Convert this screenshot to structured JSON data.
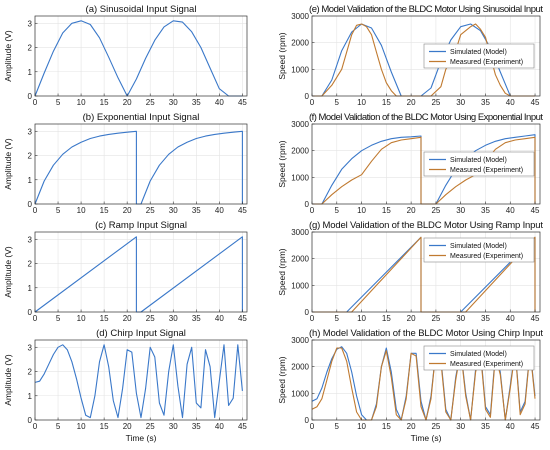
{
  "colors": {
    "model": "#3a78c9",
    "experiment": "#c07a30",
    "grid": "#e4e4e4",
    "axis": "#333333"
  },
  "chart_data": [
    {
      "type": "line",
      "title": "(a) Sinusoidal Input Signal",
      "xlabel": "",
      "ylabel": "Amplitude (V)",
      "xlim": [
        0,
        46
      ],
      "ylim": [
        0,
        3.3
      ],
      "xticks": [
        0,
        5,
        10,
        15,
        20,
        25,
        30,
        35,
        40,
        45
      ],
      "yticks": [
        0,
        1,
        2,
        3
      ],
      "grid": true,
      "series": [
        {
          "color": "model",
          "x": [
            0,
            2,
            4,
            6,
            8,
            10,
            12,
            14,
            16,
            18,
            20,
            22,
            24,
            26,
            28,
            30,
            32,
            34,
            36,
            38,
            40,
            42,
            44,
            45
          ],
          "y": [
            0,
            0.95,
            1.85,
            2.6,
            3.0,
            3.1,
            2.95,
            2.4,
            1.6,
            0.75,
            0,
            0.7,
            1.55,
            2.3,
            2.85,
            3.1,
            3.05,
            2.65,
            2.0,
            1.15,
            0.3,
            0,
            0,
            0
          ]
        }
      ]
    },
    {
      "type": "line",
      "title": "(b) Exponential Input Signal",
      "xlabel": "",
      "ylabel": "Amplitude (V)",
      "xlim": [
        0,
        46
      ],
      "ylim": [
        0,
        3.3
      ],
      "xticks": [
        0,
        5,
        10,
        15,
        20,
        25,
        30,
        35,
        40,
        45
      ],
      "yticks": [
        0,
        1,
        2,
        3
      ],
      "grid": true,
      "series": [
        {
          "color": "model",
          "x": [
            0,
            2,
            4,
            6,
            8,
            10,
            12,
            14,
            16,
            18,
            20,
            22,
            22,
            23,
            25,
            27,
            29,
            31,
            33,
            35,
            37,
            39,
            41,
            43,
            45,
            45
          ],
          "y": [
            0,
            0.95,
            1.6,
            2.05,
            2.35,
            2.55,
            2.7,
            2.8,
            2.87,
            2.92,
            2.96,
            3.0,
            0,
            0,
            0.95,
            1.6,
            2.05,
            2.35,
            2.55,
            2.7,
            2.8,
            2.87,
            2.92,
            2.96,
            3.0,
            0
          ]
        }
      ]
    },
    {
      "type": "line",
      "title": "(c) Ramp Input Signal",
      "xlabel": "",
      "ylabel": "Amplitude (V)",
      "xlim": [
        0,
        46
      ],
      "ylim": [
        0,
        3.3
      ],
      "xticks": [
        0,
        5,
        10,
        15,
        20,
        25,
        30,
        35,
        40,
        45
      ],
      "yticks": [
        0,
        1,
        2,
        3
      ],
      "grid": true,
      "series": [
        {
          "color": "model",
          "x": [
            0,
            22,
            22,
            23,
            45,
            45
          ],
          "y": [
            0,
            3.1,
            0,
            0,
            3.1,
            0
          ]
        }
      ]
    },
    {
      "type": "line",
      "title": "(d) Chirp Input Signal",
      "xlabel": "Time (s)",
      "ylabel": "Amplitude (V)",
      "xlim": [
        0,
        46
      ],
      "ylim": [
        0,
        3.3
      ],
      "xticks": [
        0,
        5,
        10,
        15,
        20,
        25,
        30,
        35,
        40,
        45
      ],
      "yticks": [
        0,
        1,
        2,
        3
      ],
      "grid": true,
      "series": [
        {
          "color": "model",
          "x": [
            0,
            1,
            2,
            3,
            4,
            5,
            6,
            7,
            8,
            9,
            10,
            11,
            12,
            13,
            14,
            15,
            16,
            17,
            18,
            19,
            20,
            21,
            22,
            23,
            24,
            25,
            26,
            27,
            28,
            29,
            30,
            31,
            32,
            33,
            34,
            35,
            36,
            37,
            38,
            39,
            40,
            41,
            42,
            43,
            44,
            45
          ],
          "y": [
            1.55,
            1.6,
            1.9,
            2.3,
            2.7,
            3.0,
            3.1,
            2.9,
            2.4,
            1.7,
            0.9,
            0.2,
            0.1,
            1.0,
            2.4,
            3.1,
            2.2,
            0.8,
            0.1,
            1.3,
            2.9,
            2.8,
            1.1,
            0.1,
            1.3,
            3.0,
            2.6,
            0.7,
            0.2,
            2.0,
            3.1,
            1.4,
            0.1,
            2.3,
            3.0,
            0.7,
            0.5,
            2.9,
            2.2,
            0.1,
            1.6,
            3.1,
            0.6,
            0.9,
            3.1,
            1.2
          ]
        }
      ]
    },
    {
      "type": "line",
      "title": "(e) Model Validation of the BLDC Motor Using Sinusoidal Input",
      "xlabel": "",
      "ylabel": "Speed (rpm)",
      "xlim": [
        0,
        46
      ],
      "ylim": [
        0,
        3000
      ],
      "xticks": [
        0,
        5,
        10,
        15,
        20,
        25,
        30,
        35,
        40,
        45
      ],
      "yticks": [
        0,
        1000,
        2000,
        3000
      ],
      "grid": true,
      "legend": [
        "Simulated (Model)",
        "Measured (Experiment)"
      ],
      "legend_position": "right",
      "series": [
        {
          "name": "Simulated (Model)",
          "color": "model",
          "x": [
            0,
            2,
            4,
            6,
            8,
            10,
            12,
            14,
            16,
            18,
            20,
            22,
            24,
            26,
            28,
            30,
            32,
            34,
            36,
            38,
            40,
            42,
            44,
            45
          ],
          "y": [
            0,
            0,
            600,
            1700,
            2400,
            2700,
            2550,
            1900,
            900,
            0,
            0,
            0,
            300,
            1300,
            2100,
            2600,
            2700,
            2450,
            1800,
            900,
            0,
            0,
            0,
            0
          ]
        },
        {
          "name": "Measured (Experiment)",
          "color": "experiment",
          "x": [
            0,
            2,
            4,
            6,
            8,
            9,
            10,
            11,
            12,
            13,
            14,
            15,
            16,
            17,
            18,
            20,
            22,
            24,
            26,
            27,
            28,
            29,
            30,
            32,
            33,
            34,
            35,
            36,
            37,
            38,
            39,
            40,
            42,
            45
          ],
          "y": [
            0,
            0,
            400,
            1000,
            2300,
            2650,
            2700,
            2600,
            2300,
            1650,
            1000,
            500,
            200,
            0,
            0,
            0,
            0,
            0,
            350,
            1000,
            1300,
            1700,
            2300,
            2600,
            2700,
            2500,
            2200,
            1500,
            800,
            400,
            100,
            0,
            0,
            0
          ]
        }
      ]
    },
    {
      "type": "line",
      "title": "(f) Model Validation of the BLDC Motor Using Exponential Input",
      "xlabel": "",
      "ylabel": "Speed (rpm)",
      "xlim": [
        0,
        46
      ],
      "ylim": [
        0,
        3000
      ],
      "xticks": [
        0,
        5,
        10,
        15,
        20,
        25,
        30,
        35,
        40,
        45
      ],
      "yticks": [
        0,
        1000,
        2000,
        3000
      ],
      "grid": true,
      "legend": [
        "Simulated (Model)",
        "Measured (Experiment)"
      ],
      "legend_position": "right",
      "series": [
        {
          "name": "Simulated (Model)",
          "color": "model",
          "x": [
            0,
            2,
            4,
            6,
            8,
            10,
            12,
            14,
            16,
            18,
            20,
            22,
            22,
            25,
            27,
            29,
            31,
            33,
            35,
            37,
            39,
            41,
            43,
            45,
            45
          ],
          "y": [
            0,
            0,
            700,
            1300,
            1700,
            2000,
            2200,
            2350,
            2450,
            2500,
            2520,
            2550,
            0,
            0,
            700,
            1300,
            1700,
            2000,
            2200,
            2350,
            2450,
            2500,
            2550,
            2600,
            0
          ]
        },
        {
          "name": "Measured (Experiment)",
          "color": "experiment",
          "x": [
            0,
            2,
            4,
            6,
            8,
            10,
            12,
            14,
            16,
            18,
            20,
            22,
            22,
            25,
            27,
            29,
            31,
            33,
            35,
            37,
            39,
            41,
            43,
            45,
            45
          ],
          "y": [
            0,
            0,
            350,
            650,
            900,
            1100,
            1600,
            2050,
            2300,
            2400,
            2450,
            2500,
            0,
            0,
            350,
            650,
            900,
            1100,
            1600,
            2050,
            2300,
            2400,
            2450,
            2500,
            0
          ]
        }
      ]
    },
    {
      "type": "line",
      "title": "(g) Model Validation of the BLDC Motor Using Ramp Input",
      "xlabel": "",
      "ylabel": "Speed (rpm)",
      "xlim": [
        0,
        46
      ],
      "ylim": [
        0,
        3000
      ],
      "xticks": [
        0,
        5,
        10,
        15,
        20,
        25,
        30,
        35,
        40,
        45
      ],
      "yticks": [
        0,
        1000,
        2000,
        3000
      ],
      "grid": true,
      "legend": [
        "Simulated (Model)",
        "Measured (Experiment)"
      ],
      "legend_position": "top-right",
      "series": [
        {
          "name": "Simulated (Model)",
          "color": "model",
          "x": [
            0,
            7,
            22,
            22,
            30,
            45,
            45
          ],
          "y": [
            0,
            0,
            2800,
            0,
            0,
            2800,
            0
          ]
        },
        {
          "name": "Measured (Experiment)",
          "color": "experiment",
          "x": [
            0,
            8,
            22,
            22,
            31,
            45,
            45
          ],
          "y": [
            0,
            0,
            2800,
            0,
            0,
            2800,
            0
          ]
        }
      ]
    },
    {
      "type": "line",
      "title": "(h) Model Validation of the BLDC Motor Using Chirp Input",
      "xlabel": "Time (s)",
      "ylabel": "Speed (rpm)",
      "xlim": [
        0,
        46
      ],
      "ylim": [
        0,
        3000
      ],
      "xticks": [
        0,
        5,
        10,
        15,
        20,
        25,
        30,
        35,
        40,
        45
      ],
      "yticks": [
        0,
        1000,
        2000,
        3000
      ],
      "grid": true,
      "legend": [
        "Simulated (Model)",
        "Measured (Experiment)"
      ],
      "legend_position": "top-right",
      "series": [
        {
          "name": "Simulated (Model)",
          "color": "model",
          "x": [
            0,
            1,
            2,
            3,
            4,
            5,
            6,
            7,
            8,
            9,
            10,
            11,
            12,
            13,
            14,
            15,
            16,
            17,
            18,
            19,
            20,
            21,
            22,
            23,
            24,
            25,
            26,
            27,
            28,
            29,
            30,
            31,
            32,
            33,
            34,
            35,
            36,
            37,
            38,
            39,
            40,
            41,
            42,
            43,
            44,
            45
          ],
          "y": [
            700,
            800,
            1200,
            1800,
            2300,
            2650,
            2750,
            2500,
            1800,
            900,
            200,
            0,
            0,
            600,
            2000,
            2700,
            1800,
            400,
            0,
            900,
            2500,
            2500,
            700,
            0,
            900,
            2600,
            2300,
            400,
            0,
            1600,
            2650,
            1000,
            0,
            1900,
            2600,
            500,
            200,
            2500,
            1800,
            0,
            1300,
            2650,
            300,
            700,
            2650,
            900
          ]
        },
        {
          "name": "Measured (Experiment)",
          "color": "experiment",
          "x": [
            0,
            1,
            2,
            3,
            4,
            5,
            6,
            7,
            8,
            9,
            10,
            11,
            12,
            13,
            14,
            15,
            16,
            17,
            18,
            19,
            20,
            21,
            22,
            23,
            24,
            25,
            26,
            27,
            28,
            29,
            30,
            31,
            32,
            33,
            34,
            35,
            36,
            37,
            38,
            39,
            40,
            41,
            42,
            43,
            44,
            45
          ],
          "y": [
            400,
            500,
            800,
            1500,
            2200,
            2700,
            2700,
            2200,
            1200,
            300,
            0,
            0,
            0,
            500,
            2000,
            2600,
            1600,
            200,
            0,
            800,
            2500,
            2400,
            500,
            0,
            800,
            2600,
            2200,
            300,
            0,
            1500,
            2600,
            900,
            0,
            1800,
            2500,
            400,
            100,
            2400,
            1700,
            0,
            1200,
            2600,
            200,
            600,
            2600,
            800
          ]
        }
      ]
    }
  ]
}
